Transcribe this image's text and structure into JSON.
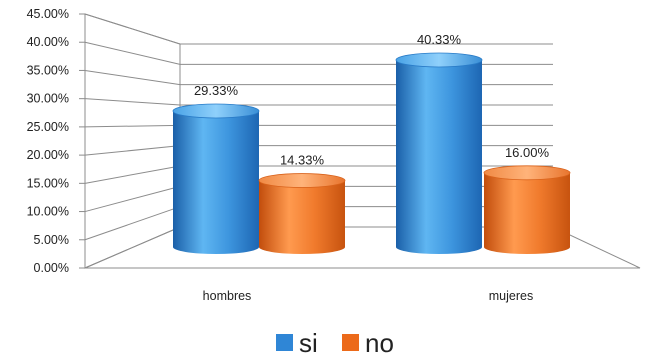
{
  "chart_data": {
    "type": "bar",
    "categories": [
      "hombres",
      "mujeres"
    ],
    "series": [
      {
        "name": "si",
        "values": [
          29.33,
          40.33
        ],
        "labels": [
          "29.33%",
          "40.33%"
        ],
        "color": "#2f86d6"
      },
      {
        "name": "no",
        "values": [
          14.33,
          16.0
        ],
        "labels": [
          "14.33%",
          "16.00%"
        ],
        "color": "#ec6a1a"
      }
    ],
    "y_ticks": [
      "0.00%",
      "5.00%",
      "10.00%",
      "15.00%",
      "20.00%",
      "25.00%",
      "30.00%",
      "35.00%",
      "40.00%",
      "45.00%"
    ],
    "ylim": [
      0,
      45
    ],
    "grid": true,
    "legend_position": "bottom"
  }
}
